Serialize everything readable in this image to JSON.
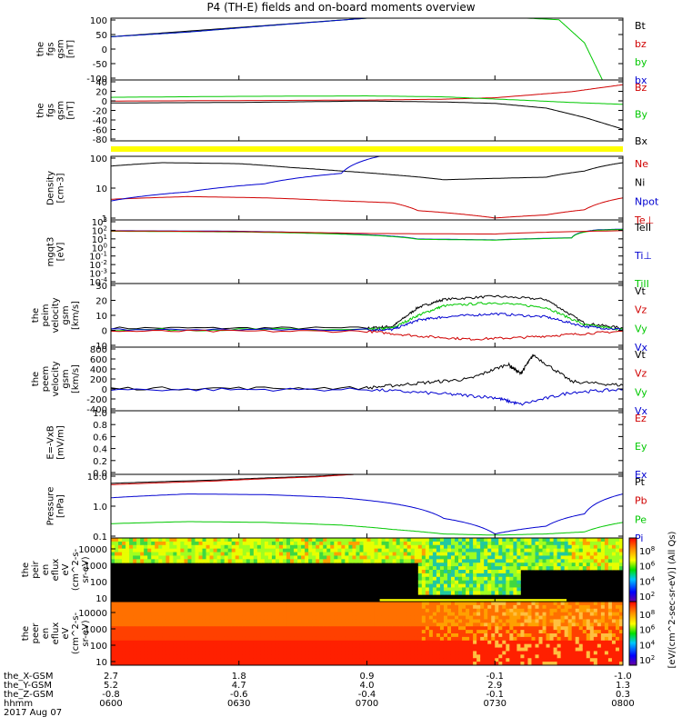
{
  "title": "P4 (TH-E) fields and on-board moments overview",
  "date": "2017 Aug 07",
  "colors": {
    "black": "#000000",
    "red": "#d00000",
    "green": "#00c800",
    "blue": "#0000d0",
    "yellow": "#ffff00"
  },
  "colorbars": [
    {
      "label": "[eV/(cm^2-sec-sr-eV)] (All Qs)",
      "ticks": [
        "10^8",
        "10^6",
        "10^4",
        "10^2"
      ]
    },
    {
      "label": "[eV/(cm^2-sec-sr-eV)] (All Qs)",
      "ticks": [
        "10^8",
        "10^6",
        "10^4",
        "10^2"
      ]
    }
  ],
  "x_axis": {
    "rows": [
      {
        "label": "the_X-GSM",
        "values": [
          "2.7",
          "1.8",
          "0.9",
          "-0.1",
          "-1.0"
        ]
      },
      {
        "label": "the_Y-GSM",
        "values": [
          "5.2",
          "4.7",
          "4.0",
          "2.9",
          "1.3"
        ]
      },
      {
        "label": "the_Z-GSM",
        "values": [
          "-0.8",
          "-0.6",
          "-0.4",
          "-0.1",
          "0.3"
        ]
      },
      {
        "label": "hhmm",
        "values": [
          "0600",
          "0630",
          "0700",
          "0730",
          "0800"
        ]
      }
    ]
  },
  "chart_data": [
    {
      "type": "line",
      "panel": "fgs_gsm",
      "ylabel": [
        "the",
        "fgs",
        "gsm",
        "[nT]"
      ],
      "ylim": [
        -100,
        100
      ],
      "yticks": [
        "100",
        "50",
        "0",
        "-50",
        "-100"
      ],
      "legend": [
        {
          "text": "Bt",
          "color": "#000000"
        },
        {
          "text": "bz",
          "color": "#d00000"
        },
        {
          "text": "by",
          "color": "#00c800"
        },
        {
          "text": "bx",
          "color": "#0000d0"
        }
      ],
      "series": [
        {
          "name": "bt",
          "color": "#000000",
          "x": [
            6.0,
            6.5,
            7.0
          ],
          "y": [
            40,
            70,
            100
          ]
        },
        {
          "name": "by",
          "color": "#00c800",
          "x": [
            6.0,
            6.3,
            6.6,
            7.0,
            7.5,
            7.75,
            7.85,
            7.92
          ],
          "y": [
            40,
            55,
            75,
            100,
            105,
            95,
            20,
            -100
          ]
        },
        {
          "name": "bx",
          "color": "#0000d0",
          "x": [
            6.0,
            6.3,
            6.6,
            7.0
          ],
          "y": [
            40,
            55,
            75,
            100
          ]
        }
      ]
    },
    {
      "type": "line",
      "panel": "fgs_gsm_detail",
      "ylabel": [
        "the",
        "fgs",
        "gsm",
        "[nT]"
      ],
      "ylim": [
        -90,
        40
      ],
      "yticks": [
        "40",
        "20",
        "0",
        "-20",
        "-40",
        "-60",
        "-80"
      ],
      "legend": [
        {
          "text": "Bz",
          "color": "#d00000"
        },
        {
          "text": "By",
          "color": "#00c800"
        },
        {
          "text": "Bx",
          "color": "#000000"
        }
      ],
      "series": [
        {
          "name": "Bz",
          "color": "#d00000",
          "x": [
            6.0,
            7.0,
            7.3,
            7.5,
            7.8,
            8.0
          ],
          "y": [
            -5,
            -3,
            -1,
            2,
            15,
            30
          ]
        },
        {
          "name": "By",
          "color": "#00c800",
          "x": [
            6.0,
            6.5,
            7.0,
            7.3,
            7.6,
            7.8,
            8.0
          ],
          "y": [
            3,
            5,
            6,
            4,
            -3,
            -8,
            -12
          ]
        },
        {
          "name": "Bx",
          "color": "#000000",
          "x": [
            6.0,
            6.5,
            7.0,
            7.3,
            7.5,
            7.7,
            7.85,
            8.0
          ],
          "y": [
            -9,
            -8,
            -5,
            -7,
            -10,
            -20,
            -40,
            -65
          ]
        }
      ]
    },
    {
      "type": "line",
      "panel": "density",
      "log": true,
      "ylabel": [
        "Density",
        "[cm-3]"
      ],
      "ylim": [
        0.5,
        200
      ],
      "yticks": [
        "100",
        "10",
        "1"
      ],
      "legend": [
        {
          "text": "Ne",
          "color": "#d00000"
        },
        {
          "text": "Ni",
          "color": "#000000"
        },
        {
          "text": "Npot",
          "color": "#0000d0"
        },
        {
          "text": "Te⊥",
          "color": "#d00000"
        }
      ],
      "series": [
        {
          "name": "Ni",
          "color": "#000000",
          "x": [
            6.0,
            6.2,
            6.5,
            6.7,
            6.9,
            7.1,
            7.3,
            7.5,
            7.7,
            7.85,
            8.0
          ],
          "y": [
            80,
            110,
            100,
            70,
            50,
            35,
            22,
            25,
            28,
            50,
            110
          ]
        },
        {
          "name": "Ne",
          "color": "#d00000",
          "x": [
            6.0,
            6.3,
            6.6,
            6.9,
            7.1,
            7.2,
            7.35,
            7.5,
            7.7,
            7.85,
            8.0
          ],
          "y": [
            3.5,
            4.5,
            4,
            3,
            2.5,
            1.2,
            0.9,
            0.6,
            0.8,
            1.3,
            4
          ]
        },
        {
          "name": "Npot",
          "color": "#0000d0",
          "x": [
            6.0,
            6.3,
            6.6,
            6.9,
            7.05
          ],
          "y": [
            3,
            7,
            15,
            40,
            200
          ]
        }
      ]
    },
    {
      "type": "line",
      "panel": "temperature",
      "log": true,
      "ylabel": [
        "mgqt3",
        "[eV]"
      ],
      "ylim": [
        1e-05,
        10000
      ],
      "yticks": [
        "10^3",
        "10^2",
        "10^1",
        "10^0",
        "10^-1",
        "10^-2",
        "10^-3",
        "10^-4"
      ],
      "legend": [
        {
          "text": "TeII",
          "color": "#000000"
        },
        {
          "text": "Ti⊥",
          "color": "#0000d0"
        },
        {
          "text": "TiII",
          "color": "#00c800"
        }
      ],
      "series": [
        {
          "name": "Ti⊥",
          "color": "#0000d0",
          "x": [
            6.0,
            6.5,
            7.0,
            7.2,
            7.5,
            7.8,
            7.9,
            8.0
          ],
          "y": [
            300,
            250,
            80,
            20,
            15,
            30,
            400,
            500
          ]
        },
        {
          "name": "TiII",
          "color": "#00c800",
          "x": [
            6.0,
            6.5,
            7.0,
            7.2,
            7.5,
            7.8,
            7.9,
            8.0
          ],
          "y": [
            250,
            200,
            70,
            18,
            14,
            28,
            350,
            450
          ]
        },
        {
          "name": "TeII",
          "color": "#d00000",
          "x": [
            6.0,
            6.5,
            7.0,
            7.5,
            8.0
          ],
          "y": [
            280,
            220,
            120,
            100,
            300
          ]
        }
      ]
    },
    {
      "type": "line",
      "panel": "peim_velocity",
      "ylabel": [
        "the",
        "peim",
        "velocity",
        "gsm",
        "[km/s]"
      ],
      "ylim": [
        -10,
        30
      ],
      "yticks": [
        "30",
        "20",
        "10",
        "0",
        "-10"
      ],
      "legend": [
        {
          "text": "Vt",
          "color": "#000000"
        },
        {
          "text": "Vz",
          "color": "#d00000"
        },
        {
          "text": "Vy",
          "color": "#00c800"
        },
        {
          "text": "Vx",
          "color": "#0000d0"
        }
      ],
      "series": [
        {
          "name": "Vt",
          "color": "#000000",
          "x": [
            6.0,
            7.0,
            7.1,
            7.2,
            7.3,
            7.5,
            7.7,
            7.85,
            8.0
          ],
          "y": [
            2,
            2,
            3,
            15,
            20,
            22,
            20,
            5,
            2
          ]
        },
        {
          "name": "Vy",
          "color": "#00c800",
          "x": [
            6.0,
            7.0,
            7.1,
            7.2,
            7.3,
            7.5,
            7.7,
            7.85,
            8.0
          ],
          "y": [
            1,
            1,
            2,
            10,
            16,
            18,
            15,
            4,
            1
          ]
        },
        {
          "name": "Vx",
          "color": "#0000d0",
          "x": [
            6.0,
            7.0,
            7.1,
            7.2,
            7.3,
            7.5,
            7.7,
            7.85,
            8.0
          ],
          "y": [
            1,
            1,
            1,
            7,
            9,
            11,
            9,
            3,
            1
          ]
        },
        {
          "name": "Vz",
          "color": "#d00000",
          "x": [
            6.0,
            7.0,
            7.2,
            7.4,
            7.6,
            7.8,
            8.0
          ],
          "y": [
            0,
            0,
            -3,
            -5,
            -4,
            -2,
            0
          ]
        }
      ]
    },
    {
      "type": "line",
      "panel": "peem_velocity",
      "ylabel": [
        "the",
        "peem",
        "velocity",
        "gsm",
        "[km/s]"
      ],
      "ylim": [
        -400,
        800
      ],
      "yticks": [
        "800",
        "600",
        "400",
        "200",
        "0",
        "-200",
        "-400"
      ],
      "legend": [
        {
          "text": "Vt",
          "color": "#000000"
        },
        {
          "text": "Vz",
          "color": "#d00000"
        },
        {
          "text": "Vy",
          "color": "#00c800"
        },
        {
          "text": "Vx",
          "color": "#0000d0"
        }
      ],
      "series": [
        {
          "name": "Vt",
          "color": "#000000",
          "x": [
            6.0,
            7.0,
            7.2,
            7.4,
            7.55,
            7.6,
            7.65,
            7.8,
            8.0
          ],
          "y": [
            20,
            30,
            120,
            200,
            480,
            300,
            650,
            150,
            80
          ]
        },
        {
          "name": "Vx",
          "color": "#0000d0",
          "x": [
            6.0,
            7.0,
            7.3,
            7.5,
            7.6,
            7.8,
            8.0
          ],
          "y": [
            0,
            0,
            -80,
            -150,
            -280,
            -50,
            0
          ]
        }
      ]
    },
    {
      "type": "line",
      "panel": "efield",
      "ylabel": [
        "E=-VxB",
        "[mV/m]"
      ],
      "ylim": [
        0.0,
        1.0
      ],
      "yticks": [
        "1.0",
        "0.8",
        "0.6",
        "0.4",
        "0.2",
        "0.0"
      ],
      "legend": [
        {
          "text": "Ez",
          "color": "#d00000"
        },
        {
          "text": "Ey",
          "color": "#00c800"
        },
        {
          "text": "Ex",
          "color": "#0000d0"
        }
      ],
      "series": []
    },
    {
      "type": "line",
      "panel": "pressure",
      "log": true,
      "ylabel": [
        "Pressure",
        "[nPa]"
      ],
      "ylim": [
        0.07,
        20
      ],
      "yticks": [
        "10.0",
        "1.0",
        "0.1"
      ],
      "legend": [
        {
          "text": "Pt",
          "color": "#000000"
        },
        {
          "text": "Pb",
          "color": "#d00000"
        },
        {
          "text": "Pe",
          "color": "#00c800"
        },
        {
          "text": "Pi",
          "color": "#0000d0"
        }
      ],
      "series": [
        {
          "name": "Pt",
          "color": "#000000",
          "x": [
            6.0,
            6.4,
            6.8,
            6.95
          ],
          "y": [
            9,
            12,
            17,
            20
          ]
        },
        {
          "name": "Pb",
          "color": "#d00000",
          "x": [
            6.0,
            6.4,
            6.8,
            6.95
          ],
          "y": [
            8,
            11,
            16,
            20
          ]
        },
        {
          "name": "Pi",
          "color": "#0000d0",
          "x": [
            6.0,
            6.3,
            6.6,
            6.9,
            7.1,
            7.3,
            7.5,
            7.7,
            7.85,
            8.0
          ],
          "y": [
            2.5,
            3.5,
            3.3,
            2.5,
            1.5,
            0.4,
            0.1,
            0.2,
            0.6,
            3.5
          ]
        },
        {
          "name": "Pe",
          "color": "#00c800",
          "x": [
            6.0,
            6.3,
            6.6,
            6.9,
            7.1,
            7.3,
            7.5,
            7.7,
            7.85,
            8.0
          ],
          "y": [
            0.25,
            0.3,
            0.28,
            0.22,
            0.15,
            0.1,
            0.09,
            0.1,
            0.12,
            0.28
          ]
        }
      ]
    },
    {
      "type": "heatmap",
      "panel": "peir_en_eflux",
      "ylabel": [
        "the",
        "peir",
        "en",
        "eflux",
        "eV",
        "(cm^2-s-",
        "sr-eV)"
      ],
      "yticks": [
        "10000",
        "1000",
        "100",
        "10"
      ]
    },
    {
      "type": "heatmap",
      "panel": "peer_en_eflux",
      "ylabel": [
        "the",
        "peer",
        "en",
        "eflux",
        "eV",
        "(cm^2-s-",
        "sr-eV)"
      ],
      "yticks": [
        "10000",
        "1000",
        "100",
        "10"
      ]
    }
  ]
}
